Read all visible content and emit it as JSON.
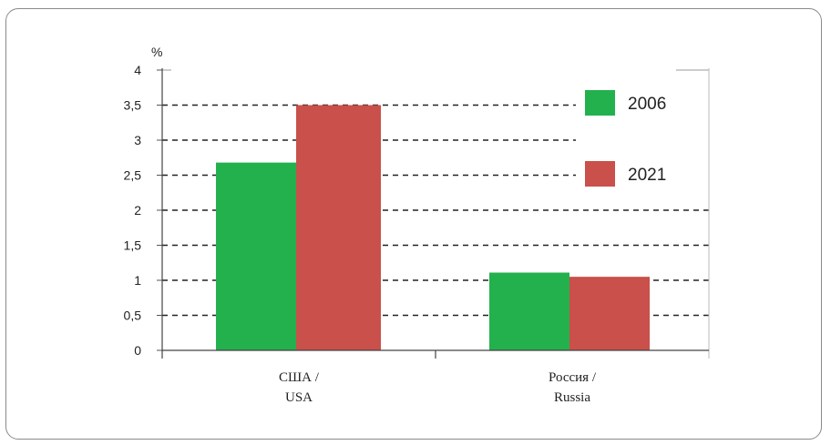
{
  "chart_data": {
    "type": "bar",
    "ylabel": "%",
    "ylim": [
      0,
      4
    ],
    "yticks": [
      "0",
      "0,5",
      "1",
      "1,5",
      "2",
      "2,5",
      "3",
      "3,5",
      "4"
    ],
    "categories": [
      {
        "line1": "США /",
        "line2": "USA"
      },
      {
        "line1": "Россия /",
        "line2": "Russia"
      }
    ],
    "series": [
      {
        "name": "2006",
        "color": "#23b14d",
        "values": [
          2.68,
          1.11
        ]
      },
      {
        "name": "2021",
        "color": "#c9504b",
        "values": [
          3.5,
          1.05
        ]
      }
    ],
    "grid": true,
    "legend_position": "top-right"
  }
}
